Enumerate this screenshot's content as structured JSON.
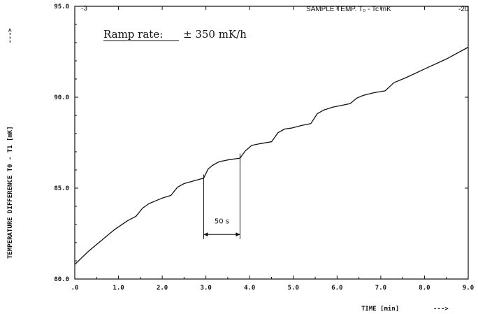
{
  "chart_data": {
    "type": "line",
    "xlabel": "TIME [min]",
    "xlabel_arrow": "--->",
    "ylabel": "TEMPERATURE DIFFERENCE T0 - T1  [mK]",
    "ylabel_arrow": "--->",
    "xlim": [
      0,
      9
    ],
    "ylim": [
      80,
      95
    ],
    "x_ticks": [
      0,
      1,
      2,
      3,
      4,
      5,
      6,
      7,
      8,
      9
    ],
    "x_tick_labels": [
      ".0",
      "1.0",
      "2.0",
      "3.0",
      "4.0",
      "5.0",
      "6.0",
      "7.0",
      "8.0",
      "9.0"
    ],
    "y_ticks": [
      80,
      85,
      90,
      95
    ],
    "y_tick_labels": [
      "80.0",
      "85.0",
      "90.0",
      "95.0"
    ],
    "grid": false,
    "top_axis": {
      "label": "SAMPLE TEMP.  T₀ - Tc  mK",
      "left_value": "-3",
      "right_value": "-20"
    },
    "annotations": {
      "ramp_label": "Ramp rate:",
      "ramp_value": "± 350 mK/h",
      "interval_label": "50 s",
      "interval_x": [
        2.95,
        3.78
      ]
    },
    "series": [
      {
        "x": [
          0,
          0.3,
          0.6,
          0.9,
          1.2,
          1.4,
          1.55,
          1.7,
          1.85,
          2.0,
          2.2,
          2.35,
          2.5,
          2.65,
          2.8,
          2.95,
          3.05,
          3.15,
          3.3,
          3.5,
          3.78,
          3.9,
          4.05,
          4.25,
          4.5,
          4.65,
          4.8,
          4.95,
          5.2,
          5.4,
          5.55,
          5.7,
          5.9,
          6.1,
          6.3,
          6.45,
          6.6,
          6.85,
          7.1,
          7.3,
          7.6,
          8.0,
          8.5,
          9.0
        ],
        "y": [
          80.8,
          81.5,
          82.1,
          82.7,
          83.2,
          83.45,
          83.9,
          84.15,
          84.3,
          84.45,
          84.6,
          85.05,
          85.25,
          85.35,
          85.45,
          85.55,
          86.05,
          86.25,
          86.45,
          86.55,
          86.65,
          87.05,
          87.35,
          87.45,
          87.55,
          88.05,
          88.25,
          88.3,
          88.45,
          88.55,
          89.1,
          89.3,
          89.45,
          89.55,
          89.65,
          89.95,
          90.1,
          90.25,
          90.35,
          90.8,
          91.1,
          91.55,
          92.1,
          92.75
        ]
      }
    ]
  }
}
